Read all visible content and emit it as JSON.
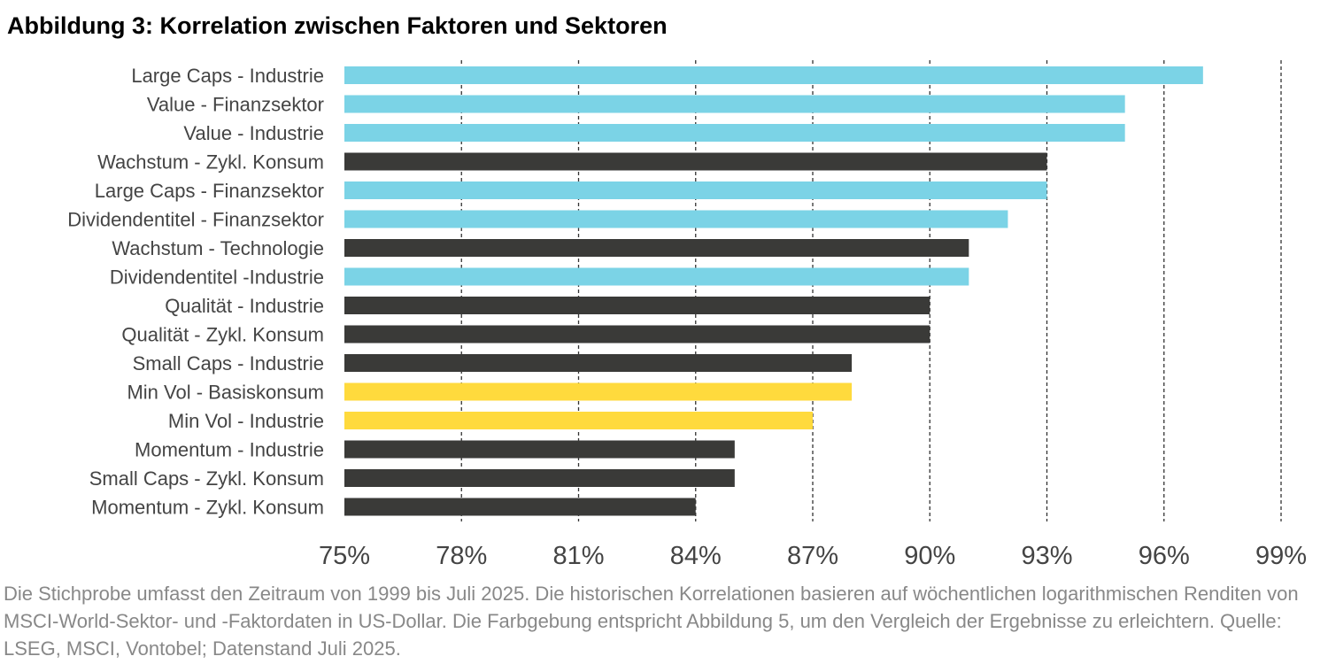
{
  "title": "Abbildung 3: Korrelation zwischen Faktoren und Sektoren",
  "footnote": "Die Stichprobe umfasst den Zeitraum von 1999 bis Juli 2025. Die historischen Korrelationen basieren auf wöchentlichen logarithmischen Renditen von MSCI-World-Sektor- und -Faktordaten in US-Dollar. Die Farbgebung entspricht Abbildung 5, um den Vergleich der Ergebnisse zu erleichtern. Quelle: LSEG, MSCI, Vontobel; Datenstand Juli 2025.",
  "chart_data": {
    "type": "bar",
    "orientation": "horizontal",
    "title": "Abbildung 3: Korrelation zwischen Faktoren und Sektoren",
    "xlabel": "",
    "ylabel": "",
    "xlim": [
      75,
      99
    ],
    "xticks": [
      75,
      78,
      81,
      84,
      87,
      90,
      93,
      96,
      99
    ],
    "tick_format": "%",
    "grid": "vertical dashed",
    "colors": {
      "cyan": "#7BD3E6",
      "dark": "#3A3A38",
      "yellow": "#FFDA3D"
    },
    "categories": [
      "Large Caps - Industrie",
      "Value - Finanzsektor",
      "Value - Industrie",
      "Wachstum - Zykl. Konsum",
      "Large Caps - Finanzsektor",
      "Dividendentitel - Finanzsektor",
      "Wachstum - Technologie",
      "Dividendentitel -Industrie",
      "Qualität - Industrie",
      "Qualität - Zykl. Konsum",
      "Small Caps - Industrie",
      "Min Vol - Basiskonsum",
      "Min Vol - Industrie",
      "Momentum - Industrie",
      "Small Caps - Zykl. Konsum",
      "Momentum - Zykl. Konsum"
    ],
    "values": [
      97,
      95,
      95,
      93,
      93,
      92,
      91,
      91,
      90,
      90,
      88,
      88,
      87,
      85,
      85,
      84
    ],
    "bar_colors": [
      "cyan",
      "cyan",
      "cyan",
      "dark",
      "cyan",
      "cyan",
      "dark",
      "cyan",
      "dark",
      "dark",
      "dark",
      "yellow",
      "yellow",
      "dark",
      "dark",
      "dark"
    ]
  }
}
